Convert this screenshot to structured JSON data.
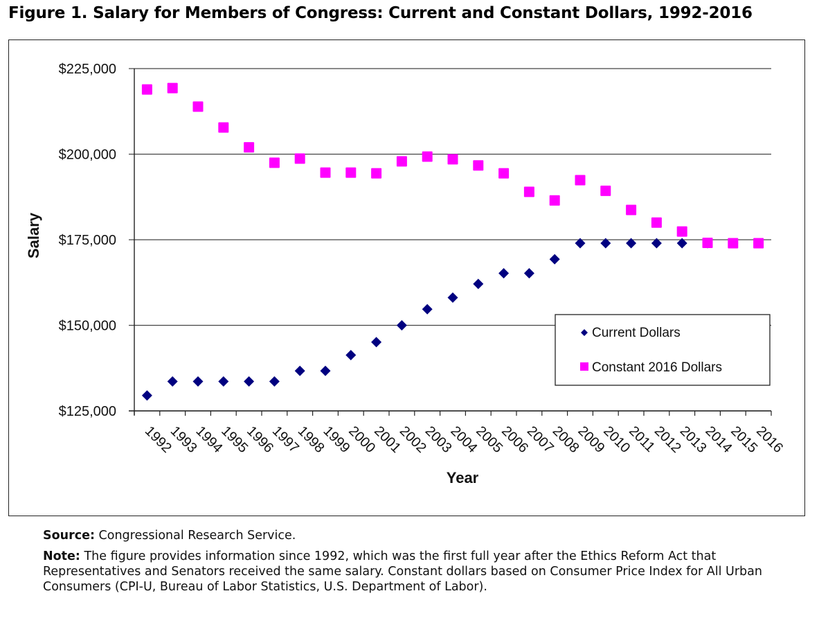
{
  "figure": {
    "title": "Figure 1. Salary for Members of Congress: Current and Constant Dollars, 1992-2016",
    "source_label": "Source:",
    "source_text": " Congressional Research Service.",
    "note_label": "Note:",
    "note_text": " The figure provides information since 1992, which was the first full year after the Ethics Reform Act that Representatives and Senators received the same salary. Constant dollars based on Consumer Price Index for All Urban Consumers (CPI-U, Bureau of Labor Statistics, U.S. Department of Labor)."
  },
  "colors": {
    "current": "#000080",
    "constant": "#ff00ff",
    "grid": "#444444"
  },
  "chart_data": {
    "type": "scatter",
    "title": "",
    "xlabel": "Year",
    "ylabel": "Salary",
    "ylim": [
      125000,
      225000
    ],
    "yticks": [
      125000,
      150000,
      175000,
      200000,
      225000
    ],
    "ytick_labels": [
      "$125,000",
      "$150,000",
      "$175,000",
      "$200,000",
      "$225,000"
    ],
    "grid": true,
    "legend_position": "lower-right",
    "categories": [
      "1992",
      "1993",
      "1994",
      "1995",
      "1996",
      "1997",
      "1998",
      "1999",
      "2000",
      "2001",
      "2002",
      "2003",
      "2004",
      "2005",
      "2006",
      "2007",
      "2008",
      "2009",
      "2010",
      "2011",
      "2012",
      "2013",
      "2014",
      "2015",
      "2016"
    ],
    "series": [
      {
        "name": "Current Dollars",
        "marker": "diamond",
        "values": [
          129500,
          133600,
          133600,
          133600,
          133600,
          133600,
          136700,
          136700,
          141300,
          145100,
          150000,
          154700,
          158100,
          162100,
          165200,
          165200,
          169300,
          174000,
          174000,
          174000,
          174000,
          174000,
          174000,
          174000,
          174000
        ]
      },
      {
        "name": "Constant 2016 Dollars",
        "marker": "square",
        "values": [
          218900,
          219300,
          213900,
          207800,
          202000,
          197500,
          198700,
          194600,
          194600,
          194400,
          197900,
          199300,
          198500,
          196700,
          194400,
          189000,
          186500,
          192400,
          189300,
          183700,
          180000,
          177400,
          174100,
          174000,
          174000
        ]
      }
    ]
  }
}
